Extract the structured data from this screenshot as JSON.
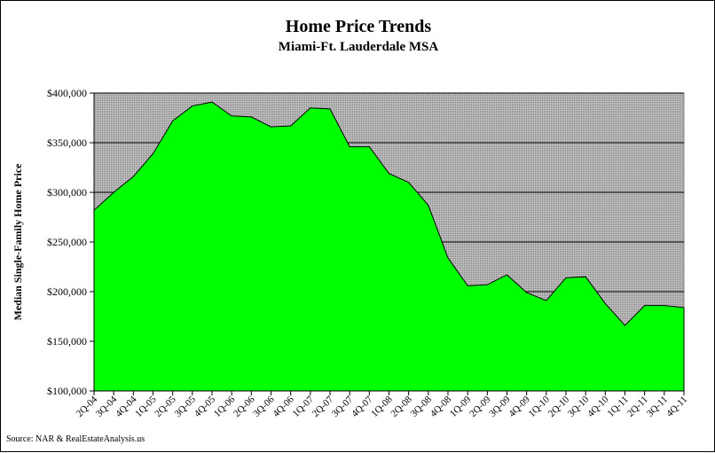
{
  "chart_data": {
    "type": "area",
    "title": "Home Price Trends",
    "subtitle": "Miami-Ft. Lauderdale MSA",
    "xlabel": "",
    "ylabel": "Median Single-Family Home Price",
    "source": "Source: NAR & RealEstateAnalysis.us",
    "ylim": [
      100000,
      400000
    ],
    "y_ticks": [
      "$100,000",
      "$150,000",
      "$200,000",
      "$250,000",
      "$300,000",
      "$350,000",
      "$400,000"
    ],
    "y_tick_values": [
      100000,
      150000,
      200000,
      250000,
      300000,
      350000,
      400000
    ],
    "grid": true,
    "legend": "none",
    "colors": {
      "fill": "#00ff00",
      "outline": "#000000",
      "plot_background": "#c0c0c0"
    },
    "categories": [
      "2Q-04",
      "3Q-04",
      "4Q-04",
      "1Q-05",
      "2Q-05",
      "3Q-05",
      "4Q-05",
      "1Q-06",
      "2Q-06",
      "3Q-06",
      "4Q-06",
      "1Q-07",
      "2Q-07",
      "3Q-07",
      "4Q-07",
      "1Q-08",
      "2Q-08",
      "3Q-08",
      "4Q-08",
      "1Q-09",
      "2Q-09",
      "3Q-09",
      "4Q-09",
      "1Q-10",
      "2Q-10",
      "3Q-10",
      "4Q-10",
      "1Q-11",
      "2Q-11",
      "3Q-11",
      "4Q-11"
    ],
    "values": [
      282000,
      300000,
      316000,
      339000,
      372000,
      387000,
      391000,
      377000,
      376000,
      366000,
      367000,
      385000,
      384000,
      346000,
      346000,
      319000,
      310000,
      287000,
      234000,
      206000,
      207000,
      217000,
      199000,
      191000,
      214000,
      215000,
      188000,
      166000,
      186000,
      186000,
      184000
    ]
  }
}
